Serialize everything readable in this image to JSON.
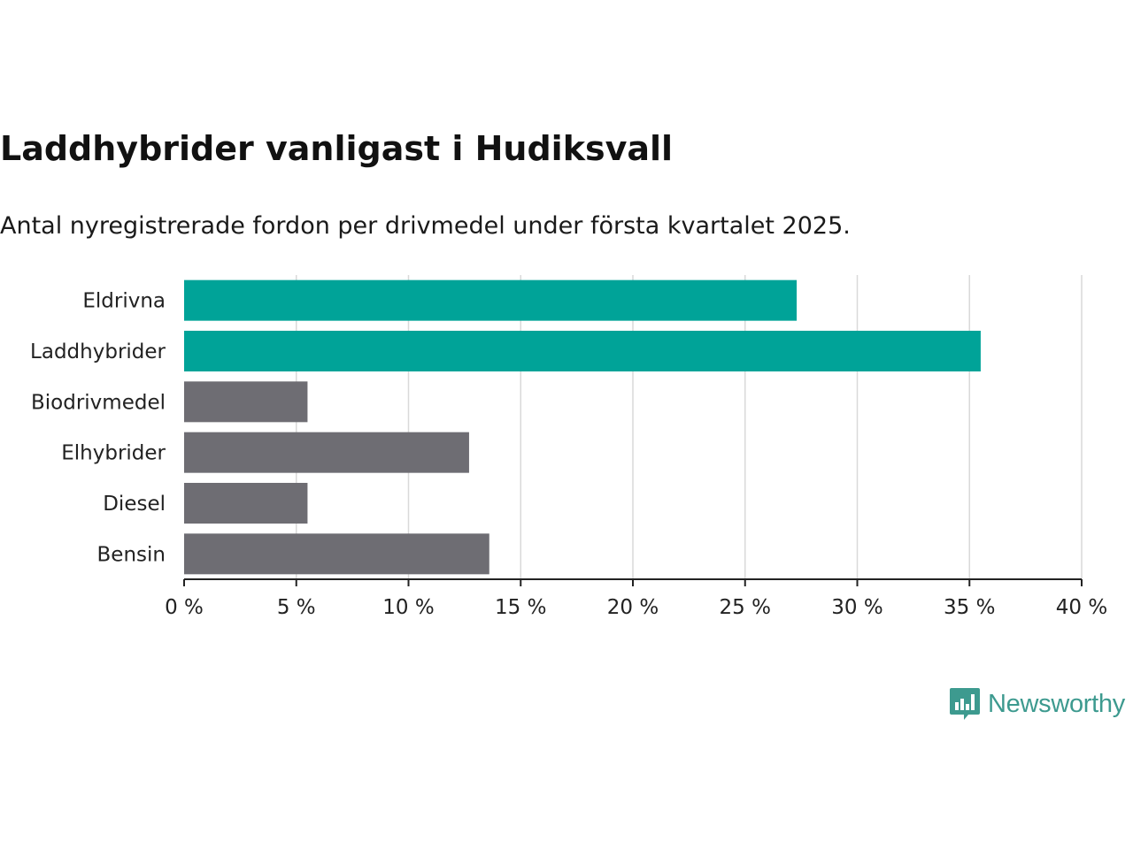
{
  "title": "Laddhybrider vanligast i Hudiksvall",
  "subtitle": "Antal nyregistrerade fordon per drivmedel under första kvartalet 2025.",
  "brand": {
    "name": "Newsworthy",
    "icon": "newsworthy-logo-icon",
    "color": "#3d9a8f"
  },
  "colors": {
    "highlight": "#00a398",
    "default": "#6e6d73",
    "grid": "#d9d9d9",
    "axis": "#222222"
  },
  "chart_data": {
    "type": "bar",
    "orientation": "horizontal",
    "categories": [
      "Eldrivna",
      "Laddhybrider",
      "Biodrivmedel",
      "Elhybrider",
      "Diesel",
      "Bensin"
    ],
    "values": [
      27.3,
      35.5,
      5.5,
      12.7,
      5.5,
      13.6
    ],
    "highlighted": [
      "Eldrivna",
      "Laddhybrider"
    ],
    "xlim": [
      0,
      40
    ],
    "xticks": [
      0,
      5,
      10,
      15,
      20,
      25,
      30,
      35,
      40
    ],
    "xtick_labels": [
      "0 %",
      "5 %",
      "10 %",
      "15 %",
      "20 %",
      "25 %",
      "30 %",
      "35 %",
      "40 %"
    ],
    "grid": "vertical",
    "legend": "none"
  }
}
